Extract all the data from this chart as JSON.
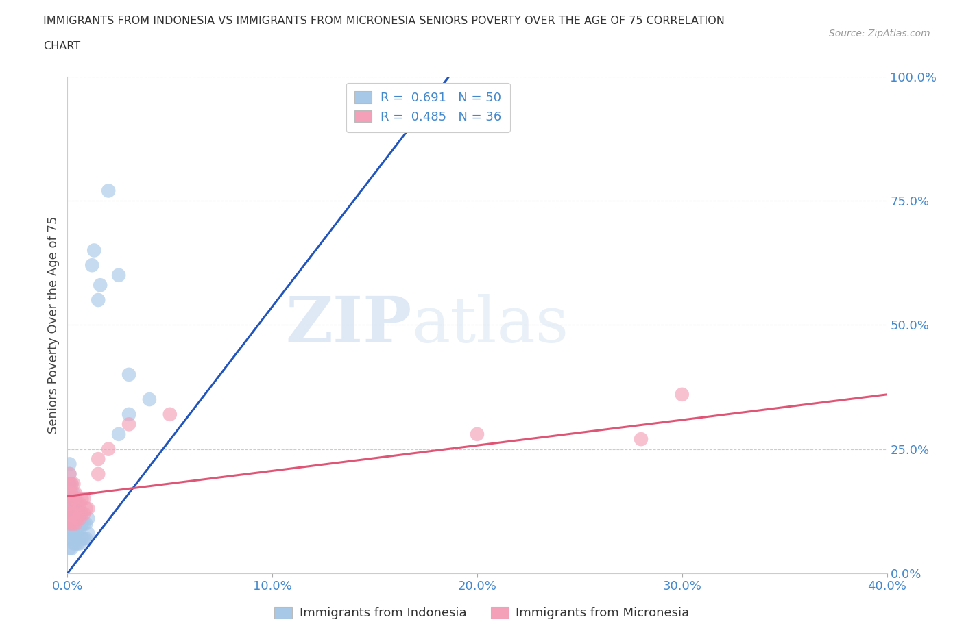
{
  "title_line1": "IMMIGRANTS FROM INDONESIA VS IMMIGRANTS FROM MICRONESIA SENIORS POVERTY OVER THE AGE OF 75 CORRELATION",
  "title_line2": "CHART",
  "source_text": "Source: ZipAtlas.com",
  "ylabel": "Seniors Poverty Over the Age of 75",
  "xlim": [
    0.0,
    0.4
  ],
  "ylim": [
    0.0,
    1.0
  ],
  "xtick_vals": [
    0.0,
    0.1,
    0.2,
    0.3,
    0.4
  ],
  "xtick_labels": [
    "0.0%",
    "10.0%",
    "20.0%",
    "30.0%",
    "40.0%"
  ],
  "ytick_vals": [
    0.0,
    0.25,
    0.5,
    0.75,
    1.0
  ],
  "ytick_labels": [
    "0.0%",
    "25.0%",
    "50.0%",
    "75.0%",
    "100.0%"
  ],
  "watermark_zip": "ZIP",
  "watermark_atlas": "atlas",
  "legend_r1": "R =  0.691   N = 50",
  "legend_r2": "R =  0.485   N = 36",
  "indonesia_color": "#a8c8e8",
  "micronesia_color": "#f4a0b8",
  "indonesia_line_color": "#2255bb",
  "micronesia_line_color": "#e05575",
  "grid_color": "#cccccc",
  "background_color": "#ffffff",
  "title_color": "#333333",
  "axis_label_color": "#444444",
  "tick_color": "#4488cc",
  "source_color": "#999999",
  "indo_line_x": [
    0.0,
    0.19
  ],
  "indo_line_y": [
    0.0,
    1.02
  ],
  "micro_line_x": [
    0.0,
    0.4
  ],
  "micro_line_y": [
    0.155,
    0.36
  ],
  "indo_x": [
    0.001,
    0.001,
    0.001,
    0.001,
    0.001,
    0.001,
    0.001,
    0.001,
    0.001,
    0.001,
    0.002,
    0.002,
    0.002,
    0.002,
    0.002,
    0.002,
    0.002,
    0.003,
    0.003,
    0.003,
    0.003,
    0.003,
    0.004,
    0.004,
    0.004,
    0.004,
    0.005,
    0.005,
    0.005,
    0.006,
    0.006,
    0.006,
    0.007,
    0.007,
    0.008,
    0.008,
    0.009,
    0.009,
    0.01,
    0.01,
    0.012,
    0.013,
    0.015,
    0.016,
    0.02,
    0.025,
    0.03,
    0.04,
    0.03,
    0.025
  ],
  "indo_y": [
    0.05,
    0.07,
    0.08,
    0.1,
    0.12,
    0.14,
    0.16,
    0.18,
    0.2,
    0.22,
    0.05,
    0.07,
    0.09,
    0.11,
    0.14,
    0.16,
    0.18,
    0.06,
    0.08,
    0.1,
    0.13,
    0.16,
    0.06,
    0.08,
    0.11,
    0.14,
    0.06,
    0.09,
    0.12,
    0.06,
    0.09,
    0.12,
    0.07,
    0.1,
    0.07,
    0.1,
    0.07,
    0.1,
    0.08,
    0.11,
    0.62,
    0.65,
    0.55,
    0.58,
    0.77,
    0.6,
    0.4,
    0.35,
    0.32,
    0.28
  ],
  "micro_x": [
    0.001,
    0.001,
    0.001,
    0.001,
    0.001,
    0.001,
    0.002,
    0.002,
    0.002,
    0.002,
    0.002,
    0.003,
    0.003,
    0.003,
    0.003,
    0.004,
    0.004,
    0.004,
    0.005,
    0.005,
    0.006,
    0.006,
    0.007,
    0.007,
    0.008,
    0.008,
    0.009,
    0.01,
    0.015,
    0.015,
    0.02,
    0.03,
    0.05,
    0.2,
    0.28,
    0.3
  ],
  "micro_y": [
    0.1,
    0.12,
    0.14,
    0.16,
    0.18,
    0.2,
    0.1,
    0.12,
    0.14,
    0.16,
    0.18,
    0.1,
    0.12,
    0.15,
    0.18,
    0.1,
    0.13,
    0.16,
    0.11,
    0.14,
    0.11,
    0.14,
    0.12,
    0.15,
    0.12,
    0.15,
    0.13,
    0.13,
    0.2,
    0.23,
    0.25,
    0.3,
    0.32,
    0.28,
    0.27,
    0.36
  ]
}
